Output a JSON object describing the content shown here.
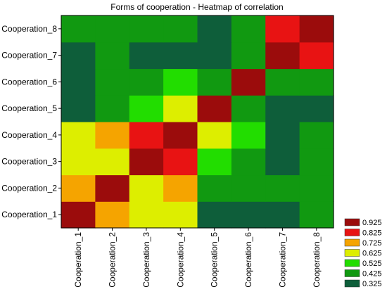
{
  "chart_data": {
    "type": "heatmap",
    "title": "Forms of cooperation - Heatmap of correlation",
    "x_categories": [
      "Cooperation_1",
      "Cooperation_2",
      "Cooperation_3",
      "Cooperation_4",
      "Cooperation_5",
      "Cooperation_6",
      "Cooperation_7",
      "Cooperation_8"
    ],
    "y_categories": [
      "Cooperation_1",
      "Cooperation_2",
      "Cooperation_3",
      "Cooperation_4",
      "Cooperation_5",
      "Cooperation_6",
      "Cooperation_7",
      "Cooperation_8"
    ],
    "values": [
      [
        0.95,
        0.8,
        0.65,
        0.7,
        0.4,
        0.42,
        0.42,
        0.45
      ],
      [
        0.8,
        0.95,
        0.68,
        0.75,
        0.52,
        0.5,
        0.48,
        0.46
      ],
      [
        0.65,
        0.68,
        0.95,
        0.85,
        0.6,
        0.52,
        0.35,
        0.45
      ],
      [
        0.7,
        0.75,
        0.85,
        0.95,
        0.68,
        0.62,
        0.42,
        0.45
      ],
      [
        0.4,
        0.52,
        0.6,
        0.68,
        0.95,
        0.5,
        0.33,
        0.42
      ],
      [
        0.42,
        0.5,
        0.52,
        0.62,
        0.5,
        0.95,
        0.45,
        0.48
      ],
      [
        0.42,
        0.48,
        0.35,
        0.42,
        0.33,
        0.45,
        0.95,
        0.85
      ],
      [
        0.45,
        0.46,
        0.45,
        0.45,
        0.42,
        0.48,
        0.85,
        0.95
      ]
    ],
    "legend": {
      "thresholds": [
        "0.925",
        "0.825",
        "0.725",
        "0.625",
        "0.525",
        "0.425",
        "0.325"
      ],
      "colors": [
        "#9b0c0c",
        "#e81313",
        "#f5a400",
        "#ddee00",
        "#22dd00",
        "#119911",
        "#0e5e3a"
      ]
    },
    "grid": false
  }
}
